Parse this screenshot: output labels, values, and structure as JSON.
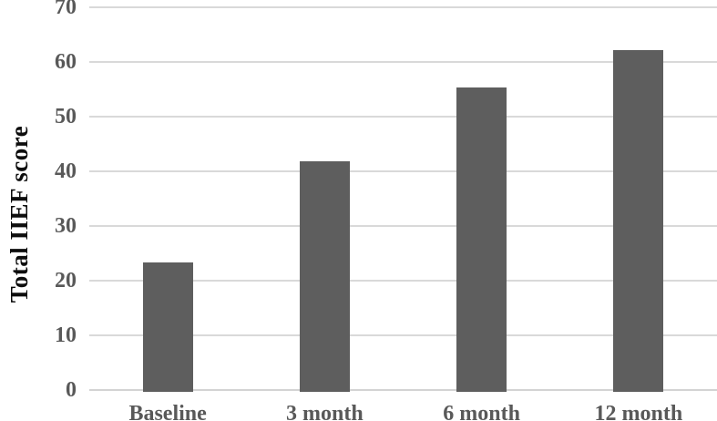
{
  "chart_data": {
    "type": "bar",
    "title": "",
    "categories": [
      "Baseline",
      "3 month",
      "6 month",
      "12 month"
    ],
    "values": [
      23.3,
      41.8,
      55.3,
      62.2
    ],
    "xlabel": "",
    "ylabel": "Total IIEF score",
    "ylim": [
      0,
      70
    ],
    "yticks": [
      0,
      10,
      20,
      30,
      40,
      50,
      60,
      70
    ],
    "ytick_labels": [
      "0",
      "10",
      "20",
      "30",
      "40",
      "50",
      "60",
      "70"
    ],
    "grid": true,
    "legend_position": "none",
    "series_count": 1
  },
  "colors": {
    "bar": "#5e5e5e",
    "gridline": "#d9d9d9",
    "axis_line": "#d3d3d3",
    "tick_label": "#595959",
    "category_label": "#595959",
    "y_title": "#0d0d0d",
    "background": "#ffffff"
  }
}
